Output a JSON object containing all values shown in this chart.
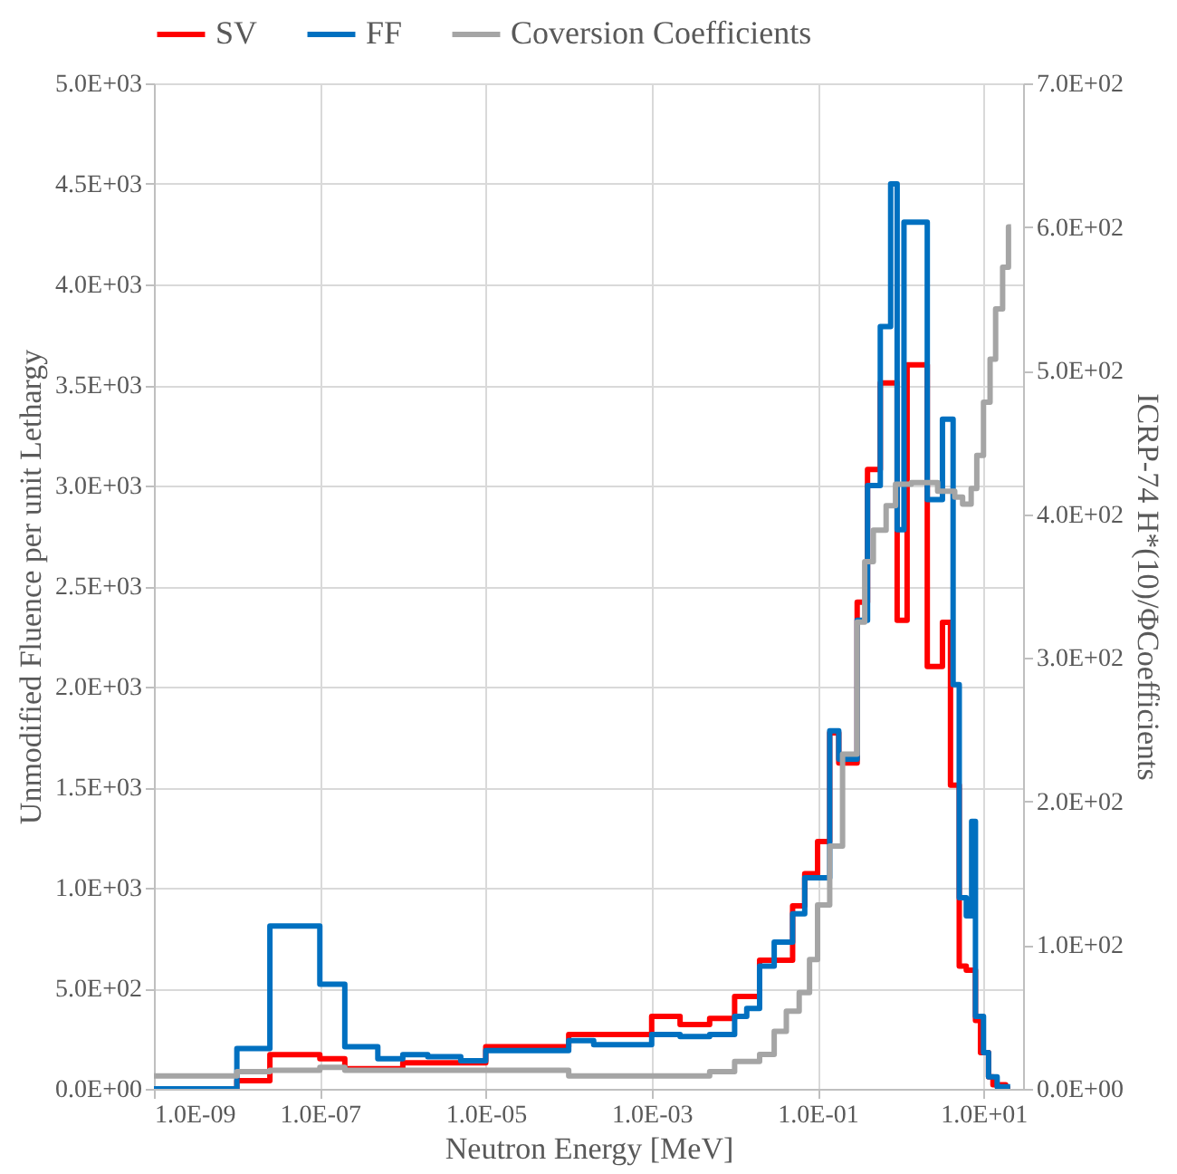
{
  "chart_data": {
    "type": "step",
    "xlabel": "Neutron Energy [MeV]",
    "ylabel": "Unmodified  Fluence per unit Lethargy",
    "y2label": "ICRP-74  H*(10)/ΦCoefficients",
    "log": "x",
    "grid": true,
    "legend": "top",
    "line_style": "solid",
    "marker": "none",
    "xlim": [
      1e-09,
      30
    ],
    "xticks": [
      {
        "value": 1e-09,
        "label": "1.0E-09"
      },
      {
        "value": 1e-07,
        "label": "1.0E-07"
      },
      {
        "value": 1e-05,
        "label": "1.0E-05"
      },
      {
        "value": 0.001,
        "label": "1.0E-03"
      },
      {
        "value": 0.1,
        "label": "1.0E-01"
      },
      {
        "value": 10,
        "label": "1.0E+01"
      }
    ],
    "ylim": [
      0,
      5000
    ],
    "yticks": [
      {
        "value": 0,
        "label": "0.0E+00"
      },
      {
        "value": 500,
        "label": "5.0E+02"
      },
      {
        "value": 1000,
        "label": "1.0E+03"
      },
      {
        "value": 1500,
        "label": "1.5E+03"
      },
      {
        "value": 2000,
        "label": "2.0E+03"
      },
      {
        "value": 2500,
        "label": "2.5E+03"
      },
      {
        "value": 3000,
        "label": "3.0E+03"
      },
      {
        "value": 3500,
        "label": "3.5E+03"
      },
      {
        "value": 4000,
        "label": "4.0E+03"
      },
      {
        "value": 4500,
        "label": "4.5E+03"
      },
      {
        "value": 5000,
        "label": "5.0E+03"
      }
    ],
    "y2lim": [
      0,
      700
    ],
    "y2ticks": [
      {
        "value": 0,
        "label": "0.0E+00"
      },
      {
        "value": 100,
        "label": "1.0E+02"
      },
      {
        "value": 200,
        "label": "2.0E+02"
      },
      {
        "value": 300,
        "label": "3.0E+02"
      },
      {
        "value": 400,
        "label": "4.0E+02"
      },
      {
        "value": 500,
        "label": "5.0E+02"
      },
      {
        "value": 600,
        "label": "6.0E+02"
      },
      {
        "value": 700,
        "label": "7.0E+02"
      }
    ],
    "series": [
      {
        "name": "SV",
        "color": "#ff0000",
        "x": [
          1e-09,
          1e-08,
          2.5e-08,
          1e-07,
          2e-07,
          1e-06,
          1e-05,
          0.0001,
          0.0002,
          0.001,
          0.0022,
          0.005,
          0.01,
          0.02,
          0.05,
          0.07,
          0.1,
          0.14,
          0.18,
          0.3,
          0.4,
          0.57,
          0.91,
          1.2,
          2.1,
          3.2,
          4,
          5.1,
          6.2,
          8,
          9.2,
          11.5,
          13,
          18.5,
          21
        ],
        "values": [
          0,
          40,
          170,
          150,
          100,
          130,
          210,
          270,
          270,
          360,
          320,
          350,
          460,
          640,
          910,
          1070,
          1230,
          1770,
          1620,
          2420,
          3080,
          3510,
          2330,
          3600,
          2100,
          2320,
          1510,
          610,
          590,
          340,
          180,
          60,
          20,
          0,
          0
        ]
      },
      {
        "name": "FF",
        "color": "#0070c0",
        "x": [
          1e-09,
          1e-08,
          2.5e-08,
          1e-07,
          2e-07,
          5e-07,
          1e-06,
          2e-06,
          5e-06,
          1e-05,
          0.0001,
          0.0002,
          0.001,
          0.0022,
          0.005,
          0.01,
          0.014,
          0.02,
          0.03,
          0.05,
          0.07,
          0.14,
          0.18,
          0.3,
          0.4,
          0.57,
          0.76,
          0.91,
          1.1,
          2.1,
          3.2,
          4.3,
          5.1,
          6.2,
          7.2,
          8,
          10,
          11.5,
          14.6,
          21
        ],
        "values": [
          0,
          200,
          810,
          520,
          210,
          150,
          170,
          160,
          140,
          190,
          240,
          220,
          270,
          260,
          270,
          360,
          400,
          610,
          730,
          870,
          1050,
          1780,
          1640,
          2330,
          3000,
          3790,
          4500,
          2780,
          4310,
          2930,
          3330,
          2010,
          950,
          860,
          1330,
          360,
          180,
          60,
          10,
          10
        ]
      },
      {
        "name": "Coversion Coefficients",
        "color": "#a5a5a5",
        "axis": "y2",
        "x": [
          1e-09,
          1e-08,
          2.5e-08,
          1e-07,
          2e-07,
          0.0001,
          0.005,
          0.01,
          0.02,
          0.03,
          0.042,
          0.06,
          0.08,
          0.1,
          0.14,
          0.2,
          0.3,
          0.37,
          0.47,
          0.67,
          0.87,
          1.35,
          2.8,
          4.5,
          5.6,
          7.1,
          8.3,
          10,
          12,
          14,
          17,
          20,
          21.5
        ],
        "values": [
          9,
          12,
          13,
          15,
          13,
          9,
          12,
          19,
          24,
          40,
          54,
          67,
          90,
          128,
          169,
          233,
          325,
          367,
          389,
          406,
          421,
          422,
          416,
          412,
          407,
          418,
          441,
          478,
          508,
          543,
          572,
          600,
          600
        ]
      }
    ]
  }
}
